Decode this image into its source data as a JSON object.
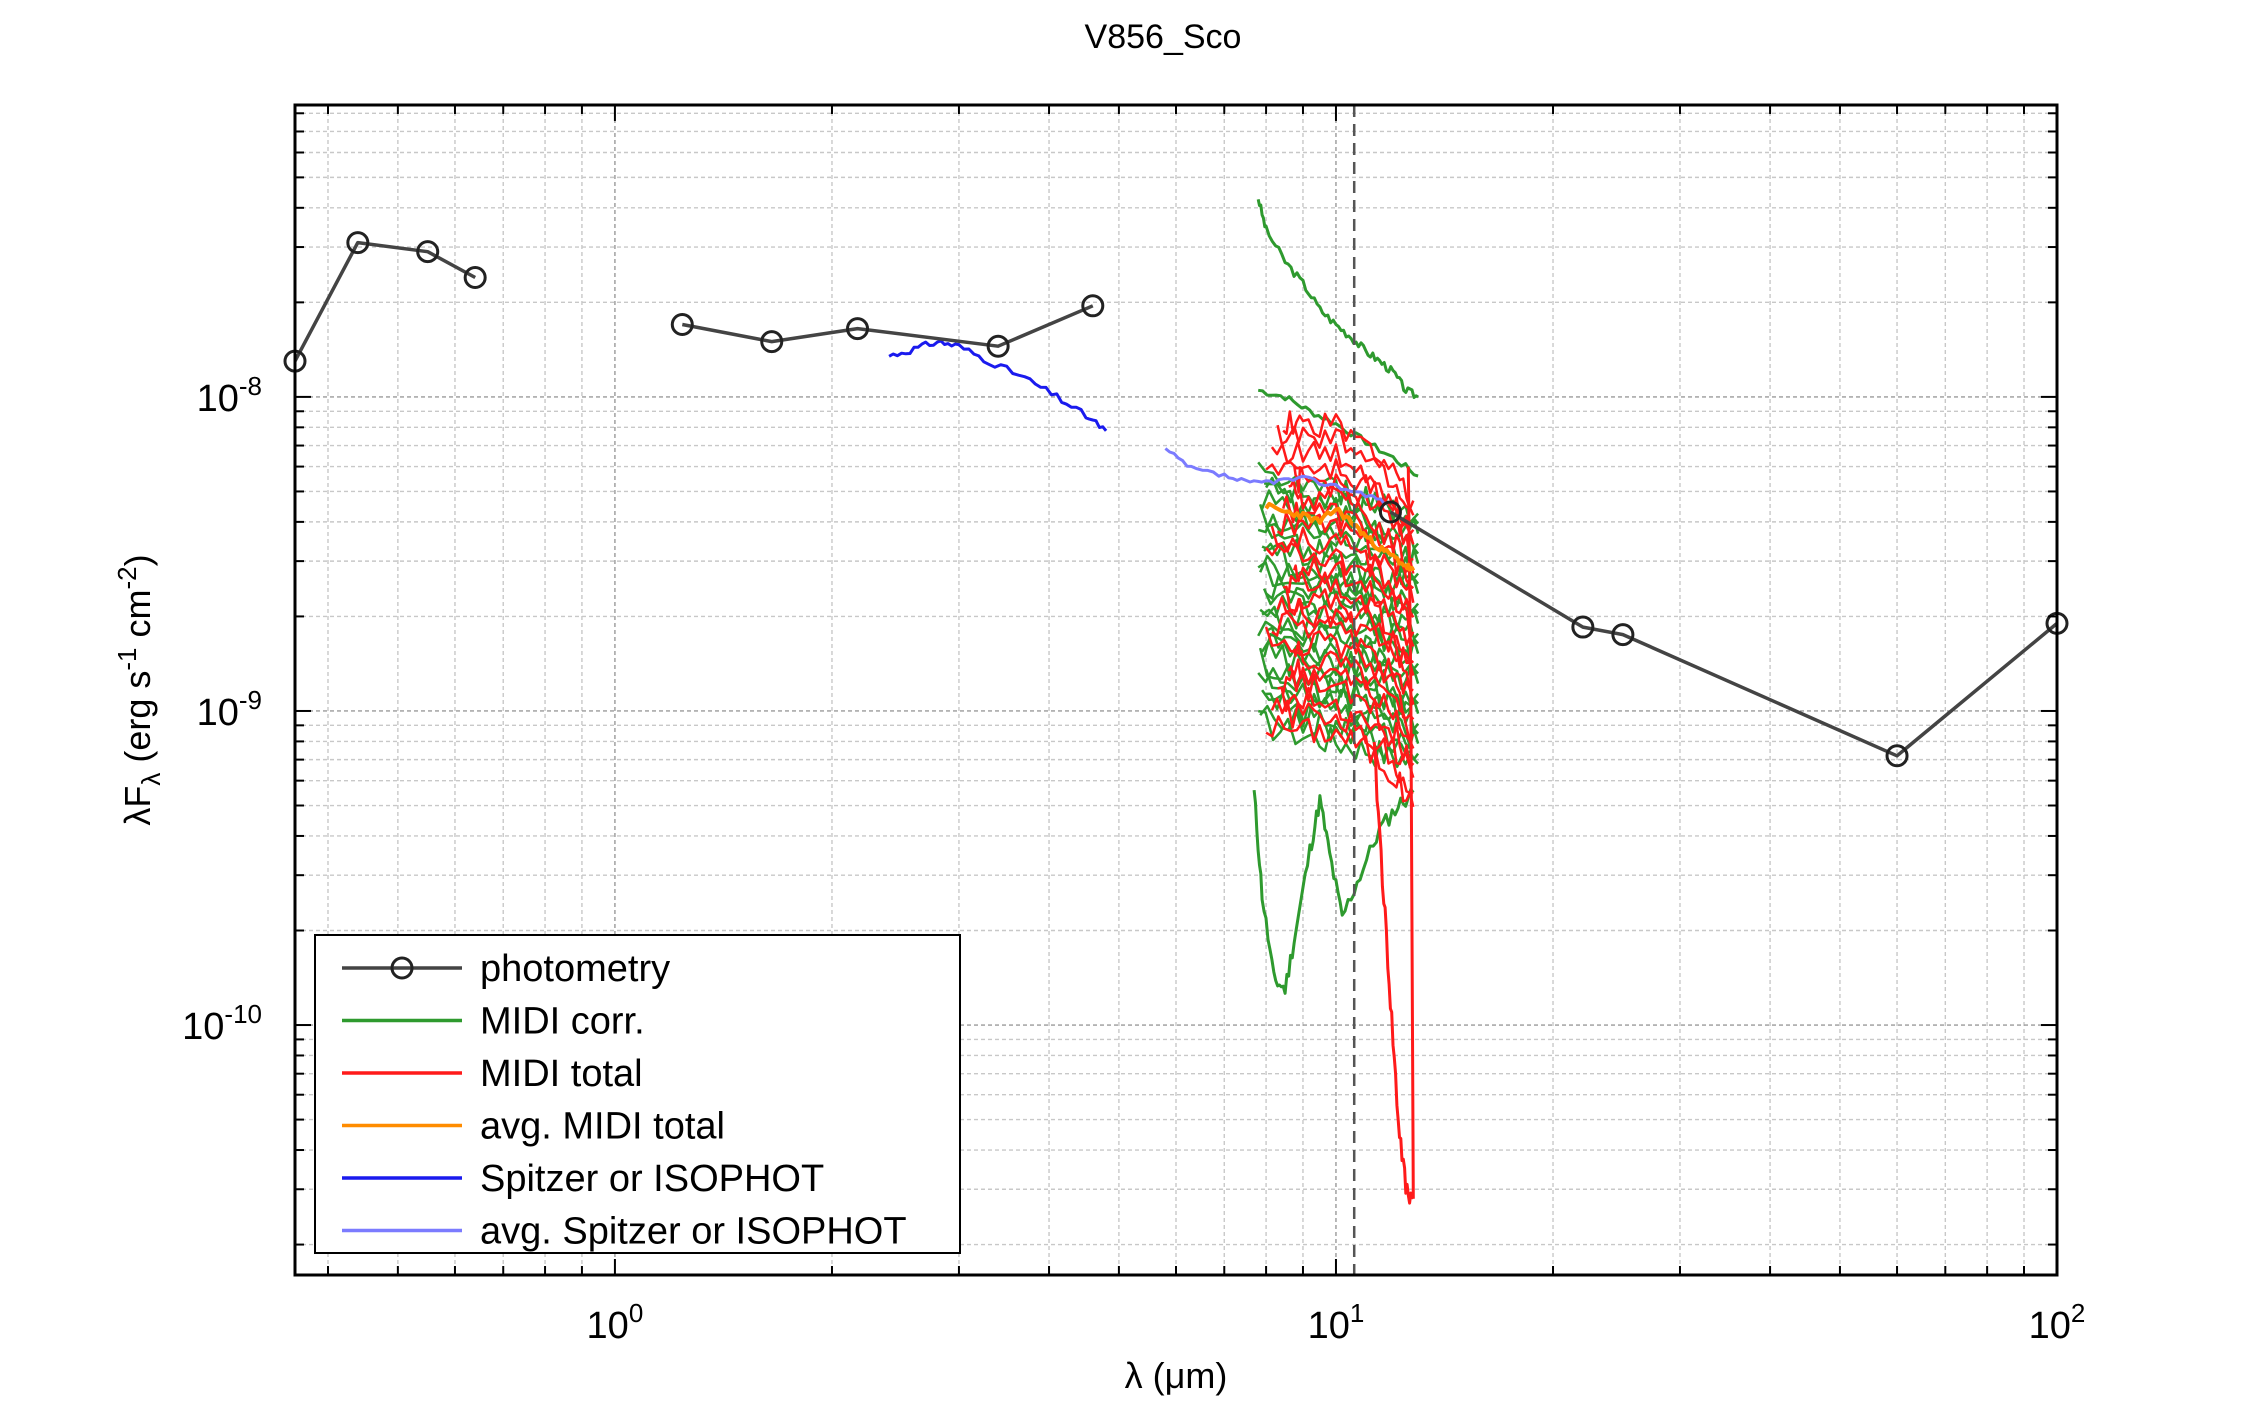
{
  "chart_data": {
    "type": "line",
    "title": "V856_Sco",
    "xlabel": "λ (μm)",
    "ylabel": "λF_λ (erg s^-1 cm^-2)",
    "xscale": "log",
    "yscale": "log",
    "xlim": [
      0.36,
      100
    ],
    "ylim": [
      1.6e-11,
      8.5e-08
    ],
    "grid": true,
    "legend_position": "bottom-left",
    "x_ticks": [
      {
        "base": "10",
        "exp": "0",
        "value": 1
      },
      {
        "base": "10",
        "exp": "1",
        "value": 10
      },
      {
        "base": "10",
        "exp": "2",
        "value": 100
      }
    ],
    "y_ticks": [
      {
        "base": "10",
        "exp": "-10",
        "value": 1e-10
      },
      {
        "base": "10",
        "exp": "-9",
        "value": 1e-09
      },
      {
        "base": "10",
        "exp": "-8",
        "value": 1e-08
      }
    ],
    "vertical_line": {
      "x": 10.6,
      "style": "dashed",
      "color": "#555555"
    },
    "colors": {
      "photometry": "#444444",
      "midi_corr": "#2e9a2e",
      "midi_total": "#ff1a1a",
      "avg_midi_total": "#ff8c00",
      "spitzer": "#1a1aee",
      "avg_spitzer": "#7b7bff"
    },
    "legend": [
      {
        "label": "photometry",
        "color": "#444444",
        "marker": "circle"
      },
      {
        "label": "MIDI corr.",
        "color": "#2e9a2e"
      },
      {
        "label": "MIDI total",
        "color": "#ff1a1a"
      },
      {
        "label": "avg. MIDI total",
        "color": "#ff8c00"
      },
      {
        "label": "Spitzer or ISOPHOT",
        "color": "#1a1aee"
      },
      {
        "label": "avg. Spitzer or ISOPHOT",
        "color": "#7b7bff"
      }
    ],
    "photometry": {
      "segments": [
        [
          [
            0.36,
            1.3e-08
          ],
          [
            0.44,
            3.1e-08
          ],
          [
            0.55,
            2.9e-08
          ],
          [
            0.64,
            2.4e-08
          ]
        ],
        [
          [
            1.24,
            1.7e-08
          ],
          [
            1.65,
            1.5e-08
          ],
          [
            2.17,
            1.65e-08
          ],
          [
            3.4,
            1.45e-08
          ],
          [
            4.6,
            1.95e-08
          ]
        ],
        [
          [
            11.9,
            4.3e-09
          ],
          [
            22,
            1.85e-09
          ],
          [
            25,
            1.75e-09
          ],
          [
            60,
            7.2e-10
          ],
          [
            100,
            1.9e-09
          ]
        ]
      ]
    },
    "spitzer": [
      [
        2.4,
        1.35e-08
      ],
      [
        2.6,
        1.42e-08
      ],
      [
        2.8,
        1.5e-08
      ],
      [
        3.0,
        1.45e-08
      ],
      [
        3.3,
        1.3e-08
      ],
      [
        3.7,
        1.15e-08
      ],
      [
        4.1,
        1e-08
      ],
      [
        4.5,
        8.7e-09
      ],
      [
        4.8,
        7.8e-09
      ]
    ],
    "avg_spitzer": [
      [
        5.8,
        6.8e-09
      ],
      [
        6.3,
        5.9e-09
      ],
      [
        7.0,
        5.6e-09
      ],
      [
        7.6,
        5.3e-09
      ],
      [
        8.2,
        5.4e-09
      ],
      [
        9.0,
        5.5e-09
      ],
      [
        10.0,
        5.2e-09
      ],
      [
        11.0,
        4.9e-09
      ],
      [
        11.8,
        4.6e-09
      ]
    ],
    "midi_corr_upper": [
      [
        7.8,
        4.3e-08
      ],
      [
        8.0,
        3.4e-08
      ],
      [
        8.5,
        2.7e-08
      ],
      [
        9.0,
        2.3e-08
      ],
      [
        9.5,
        1.9e-08
      ],
      [
        10.0,
        1.7e-08
      ],
      [
        10.5,
        1.55e-08
      ],
      [
        11.0,
        1.4e-08
      ],
      [
        11.5,
        1.3e-08
      ],
      [
        12.0,
        1.2e-08
      ],
      [
        12.5,
        1.05e-08
      ],
      [
        13.0,
        1e-08
      ]
    ],
    "midi_corr_mid": [
      [
        7.8,
        1.05e-08
      ],
      [
        8.5,
        1e-08
      ],
      [
        9.2,
        9e-09
      ],
      [
        10.0,
        8.2e-09
      ],
      [
        11.0,
        7.2e-09
      ],
      [
        12.0,
        6.4e-09
      ],
      [
        13.0,
        5.6e-09
      ]
    ],
    "midi_corr_band": {
      "x": [
        7.8,
        13.0
      ],
      "y_low": 8e-10,
      "y_high": 5e-09
    },
    "midi_corr_dip": [
      [
        7.7,
        5.5e-10
      ],
      [
        7.9,
        2.6e-10
      ],
      [
        8.2,
        1.4e-10
      ],
      [
        8.5,
        1.3e-10
      ],
      [
        8.8,
        2e-10
      ],
      [
        9.2,
        3.6e-10
      ],
      [
        9.5,
        5.2e-10
      ],
      [
        9.8,
        3.5e-10
      ],
      [
        10.2,
        2.2e-10
      ],
      [
        10.8,
        3e-10
      ],
      [
        11.5,
        4.2e-10
      ],
      [
        12.2,
        5e-10
      ],
      [
        12.8,
        5.5e-10
      ]
    ],
    "midi_total_band": {
      "x": [
        8.0,
        12.8
      ],
      "y_low": 9e-10,
      "y_high": 8.5e-09
    },
    "midi_total_drop": [
      [
        11.3,
        7.5e-10
      ],
      [
        11.6,
        3e-10
      ],
      [
        11.9,
        1.2e-10
      ],
      [
        12.2,
        5e-11
      ],
      [
        12.5,
        3e-11
      ],
      [
        12.8,
        2.8e-11
      ]
    ],
    "avg_midi_total": [
      [
        8.0,
        4.5e-09
      ],
      [
        8.5,
        4.3e-09
      ],
      [
        9.0,
        4.2e-09
      ],
      [
        9.5,
        4e-09
      ],
      [
        10.0,
        4.4e-09
      ],
      [
        10.5,
        4e-09
      ],
      [
        11.0,
        3.6e-09
      ],
      [
        11.5,
        3.3e-09
      ],
      [
        12.0,
        3.1e-09
      ],
      [
        12.5,
        2.9e-09
      ],
      [
        12.8,
        2.8e-09
      ]
    ]
  }
}
